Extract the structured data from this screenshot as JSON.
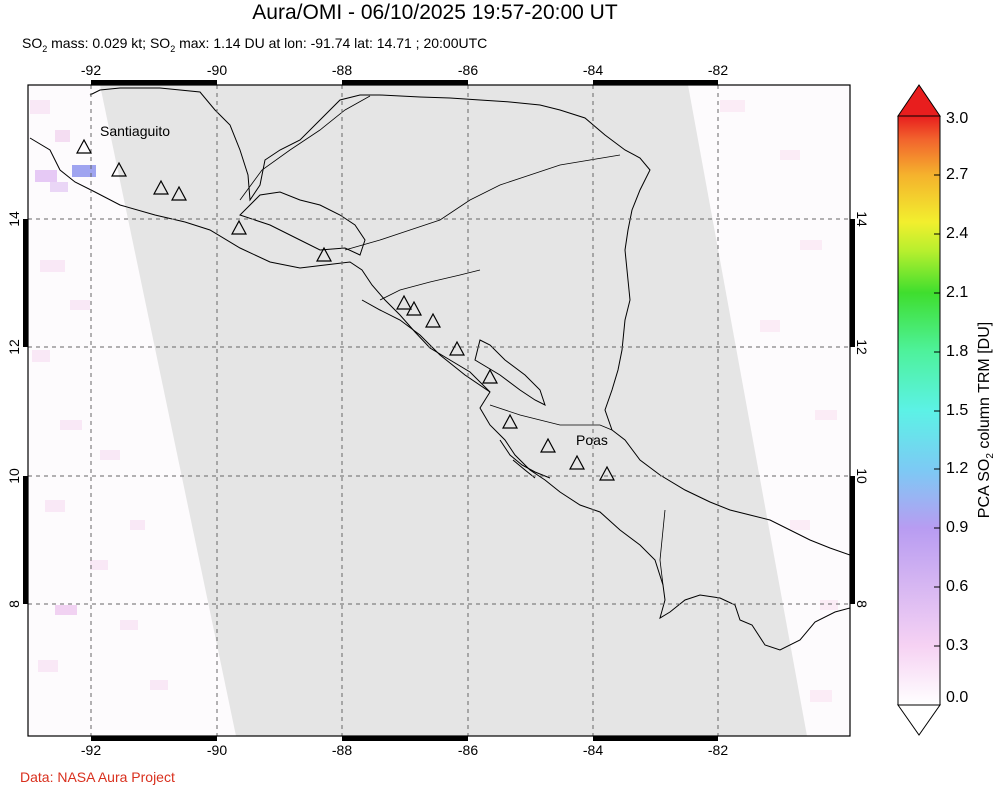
{
  "title": "Aura/OMI - 06/10/2025 19:57-20:00 UT",
  "subtitle": {
    "p1": "SO",
    "p2": " mass: 0.029 kt; SO",
    "p3": " max: 1.14 DU at lon: -91.74 lat: 14.71 ; 20:00UTC",
    "sub": "2"
  },
  "credit": "Data: NASA Aura Project",
  "map": {
    "lon_ticks": [
      "-92",
      "-90",
      "-88",
      "-86",
      "-84",
      "-82"
    ],
    "lat_ticks": [
      "14",
      "12",
      "10",
      "8"
    ],
    "volcano_labels": {
      "santiaguito": "Santiaguito",
      "poas": "Poas"
    }
  },
  "colorbar": {
    "labels": [
      "3.0",
      "2.7",
      "2.4",
      "2.1",
      "1.8",
      "1.5",
      "1.2",
      "0.9",
      "0.6",
      "0.3",
      "0.0"
    ],
    "title_pre": "PCA SO",
    "title_sub": "2",
    "title_post": " column TRM [DU]",
    "colors": [
      "#ffffff",
      "#f6d2f3",
      "#b89cf2",
      "#7ccaf4",
      "#5cf2e6",
      "#4ef29c",
      "#3fde2e",
      "#b6ef2e",
      "#f2ef2e",
      "#f5b22d",
      "#f2642d",
      "#e81e1e"
    ]
  }
}
